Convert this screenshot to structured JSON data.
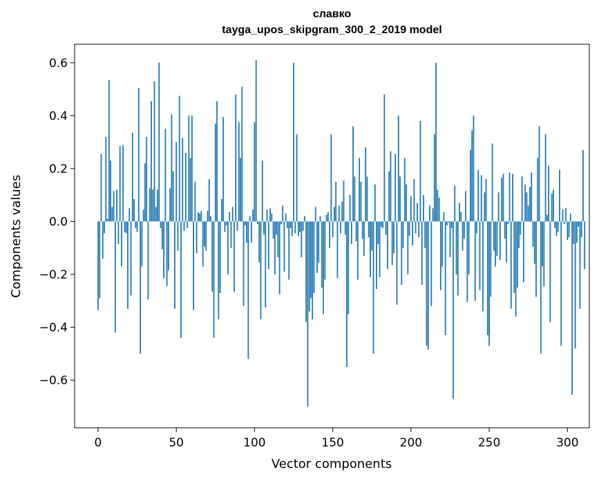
{
  "chart_data": {
    "type": "bar",
    "title": "славко",
    "subtitle": "tayga_upos_skipgram_300_2_2019 model",
    "xlabel": "Vector components",
    "ylabel": "Components values",
    "xlim": [
      -15,
      314
    ],
    "ylim": [
      -0.78,
      0.67
    ],
    "xticks": [
      0,
      50,
      100,
      150,
      200,
      250,
      300
    ],
    "yticks": [
      -0.6,
      -0.4,
      -0.2,
      0.0,
      0.2,
      0.4,
      0.6
    ],
    "xtick_labels": [
      "0",
      "50",
      "100",
      "150",
      "200",
      "250",
      "300"
    ],
    "ytick_labels": [
      "−0.6",
      "−0.4",
      "−0.2",
      "0.0",
      "0.2",
      "0.4",
      "0.6"
    ],
    "bar_color": "#1f77b4",
    "values": [
      -0.335,
      -0.29,
      0.255,
      -0.14,
      -0.045,
      0.32,
      0.01,
      0.535,
      0.23,
      0.055,
      0.115,
      -0.42,
      0.12,
      -0.085,
      0.285,
      -0.17,
      0.29,
      -0.04,
      -0.045,
      -0.33,
      0.05,
      -0.28,
      0.335,
      0.085,
      -0.025,
      -0.04,
      0.505,
      -0.5,
      -0.17,
      0.045,
      0.22,
      0.32,
      -0.295,
      0.125,
      0.455,
      0.12,
      0.53,
      0.055,
      0.12,
      0.6,
      -0.025,
      -0.105,
      -0.215,
      0.35,
      -0.245,
      -0.185,
      0.125,
      0.405,
      0.19,
      -0.33,
      0.3,
      -0.11,
      0.475,
      -0.44,
      0.315,
      -0.035,
      0.26,
      -0.025,
      0.4,
      0.24,
      0.4,
      -0.335,
      0.15,
      -0.12,
      0.035,
      0.03,
      0.04,
      -0.17,
      -0.095,
      -0.11,
      0.04,
      0.16,
      0.02,
      -0.265,
      -0.44,
      0.37,
      0.455,
      -0.37,
      -0.27,
      0.085,
      0.395,
      -0.04,
      -0.015,
      -0.2,
      0.035,
      -0.1,
      0.055,
      -0.265,
      0.48,
      -0.035,
      0.375,
      0.24,
      0.51,
      -0.32,
      -0.015,
      -0.08,
      -0.52,
      0.02,
      -0.08,
      0.045,
      0.375,
      0.61,
      -0.01,
      -0.155,
      -0.37,
      0.23,
      -0.05,
      -0.325,
      0.045,
      -0.18,
      0.05,
      0.03,
      -0.065,
      -0.2,
      -0.05,
      -0.135,
      -0.275,
      -0.01,
      0.06,
      -0.19,
      0.03,
      -0.025,
      -0.22,
      -0.025,
      -0.055,
      0.6,
      -0.045,
      0.33,
      -0.055,
      -0.04,
      -0.135,
      -0.035,
      0.02,
      -0.38,
      -0.7,
      -0.34,
      -0.29,
      -0.37,
      -0.27,
      0.055,
      -0.195,
      -0.155,
      0.02,
      -0.25,
      -0.35,
      -0.22,
      0.025,
      0.035,
      -0.1,
      0.33,
      -0.06,
      0.055,
      0.15,
      -0.215,
      0.06,
      -0.045,
      0.075,
      0.155,
      -0.05,
      -0.55,
      -0.35,
      0.1,
      -0.085,
      0.36,
      0.17,
      -0.075,
      -0.22,
      0.24,
      0.15,
      -0.065,
      -0.13,
      0.28,
      0.17,
      -0.06,
      -0.21,
      -0.11,
      -0.5,
      0.14,
      -0.255,
      -0.085,
      -0.21,
      -0.02,
      -0.025,
      0.48,
      -0.05,
      -0.18,
      0.19,
      0.265,
      -0.165,
      -0.12,
      0.255,
      -0.315,
      0.4,
      0.17,
      -0.24,
      -0.1,
      0.24,
      0.14,
      -0.2,
      -0.055,
      0.095,
      -0.09,
      0.16,
      -0.045,
      0.07,
      -0.06,
      0.38,
      -0.24,
      0.1,
      -0.1,
      -0.47,
      -0.485,
      0.06,
      -0.32,
      0.05,
      0.33,
      0.6,
      0.12,
      0.09,
      -0.26,
      -0.17,
      0.035,
      -0.43,
      -0.015,
      -0.005,
      -0.135,
      -0.025,
      -0.67,
      0.135,
      -0.2,
      -0.28,
      0.07,
      0.035,
      -0.11,
      -0.065,
      0.115,
      -0.305,
      -0.2,
      0.27,
      0.345,
      0.4,
      -0.3,
      -0.045,
      0.195,
      -0.26,
      0.175,
      -0.34,
      0.11,
      0.16,
      -0.43,
      -0.47,
      -0.285,
      0.295,
      -0.11,
      -0.17,
      -0.13,
      0.11,
      -0.145,
      0.165,
      0.18,
      -0.065,
      -0.155,
      -0.01,
      0.185,
      -0.33,
      0.18,
      -0.27,
      -0.36,
      -0.25,
      -0.1,
      -0.05,
      0.17,
      -0.23,
      0.14,
      0.11,
      0.06,
      0.13,
      0.185,
      -0.095,
      -0.16,
      -0.285,
      0.24,
      0.36,
      -0.5,
      -0.17,
      -0.245,
      0.33,
      0.025,
      0.21,
      -0.38,
      0.105,
      0.12,
      -0.025,
      -0.055,
      -0.04,
      0.195,
      -0.47,
      0.045,
      -0.01,
      0.05,
      -0.07,
      -0.06,
      0.03,
      -0.655,
      -0.085,
      -0.48,
      -0.08,
      -0.02,
      -0.33,
      -0.06,
      0.27,
      -0.18
    ]
  }
}
